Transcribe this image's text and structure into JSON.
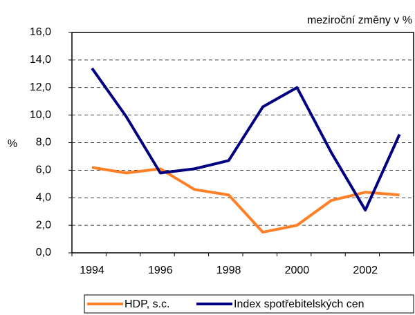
{
  "chart_data": {
    "type": "line",
    "annotation": "meziroční změny v %",
    "y_label": "%",
    "categories": [
      "1994",
      null,
      "1996",
      null,
      "1998",
      null,
      "2000",
      null,
      "2002",
      null
    ],
    "series": [
      {
        "name": "HDP, s.c.",
        "color": "#ff7f27",
        "values": [
          6.2,
          5.8,
          6.1,
          4.6,
          4.2,
          1.5,
          2.0,
          3.8,
          4.4,
          4.2
        ]
      },
      {
        "name": "Index spotřebitelských cen",
        "color": "#000080",
        "values": [
          13.4,
          9.9,
          5.8,
          6.1,
          6.7,
          10.6,
          12.0,
          7.3,
          3.1,
          8.6
        ]
      }
    ],
    "ylim": [
      0,
      16
    ],
    "yticks": [
      {
        "value": 0,
        "label": "0,0"
      },
      {
        "value": 2,
        "label": "2,0"
      },
      {
        "value": 4,
        "label": "4,0"
      },
      {
        "value": 6,
        "label": "6,0"
      },
      {
        "value": 8,
        "label": "8,0"
      },
      {
        "value": 10,
        "label": "10,0"
      },
      {
        "value": 12,
        "label": "12,0"
      },
      {
        "value": 14,
        "label": "14,0"
      },
      {
        "value": 16,
        "label": "16,0"
      }
    ],
    "grid": true
  }
}
